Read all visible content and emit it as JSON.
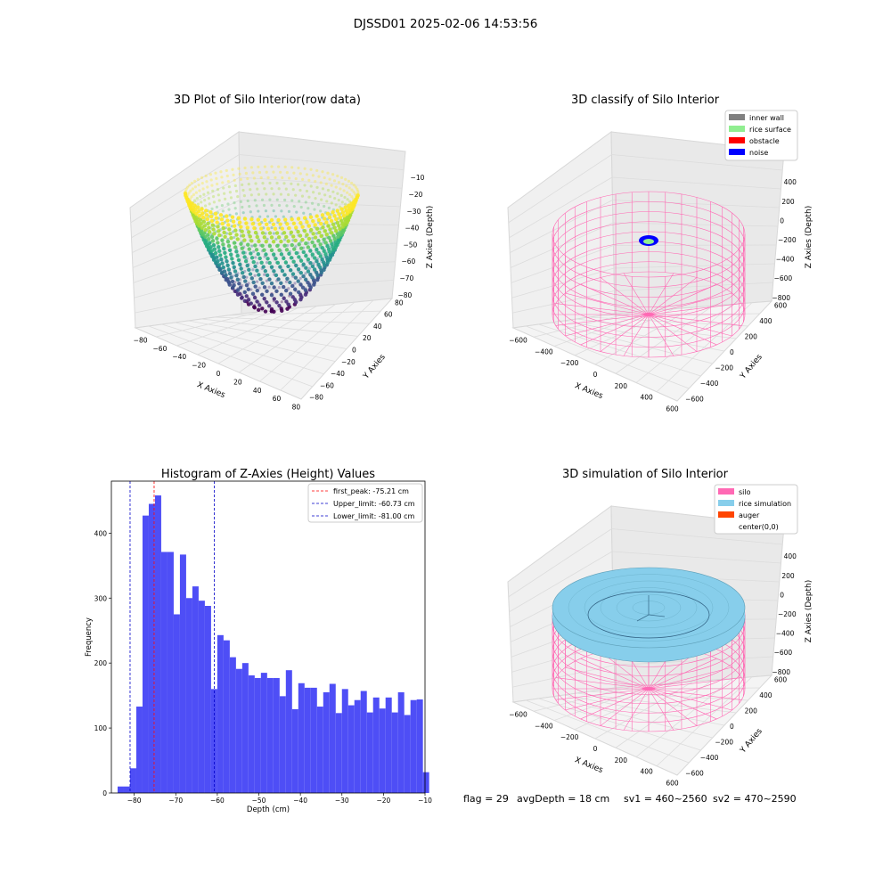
{
  "figure_title": "DJSSD01 2025-02-06 14:53:56",
  "status_line": {
    "flag": "flag = 29",
    "avg_depth": "avgDepth = 18 cm",
    "sv1": "sv1 = 460~2560",
    "sv2": "sv2 = 470~2590"
  },
  "colors": {
    "hist_bar": "#4e4ef6",
    "first_peak": "#ff0000",
    "limit": "#0000c8",
    "inner_wall": "#808080",
    "rice_surface": "#90ee90",
    "obstacle": "#ff0000",
    "noise": "#0000ff",
    "silo": "#ff69b4",
    "rice_simulation": "#87ceeb",
    "auger": "#ff4500"
  },
  "chart_data": [
    {
      "type": "scatter",
      "dimension": "3d",
      "title": "3D Plot of Silo Interior(row data)",
      "xlabel": "X Axies",
      "ylabel": "Y Axies",
      "zlabel": "Z Axies (Depth)",
      "x_ticks": [
        "−80",
        "−60",
        "−40",
        "−20",
        "0",
        "20",
        "40",
        "60",
        "80"
      ],
      "y_ticks": [
        "−80",
        "−60",
        "−40",
        "−20",
        "0",
        "20",
        "40",
        "60",
        "80"
      ],
      "z_ticks": [
        "−10",
        "−20",
        "−30",
        "−40",
        "−50",
        "−60",
        "−70",
        "−80"
      ],
      "xlim": [
        -80,
        80
      ],
      "ylim": [
        -80,
        80
      ],
      "zlim": [
        -85,
        -8
      ],
      "colormap": "viridis"
    },
    {
      "type": "scatter",
      "dimension": "3d",
      "title": "3D classify of Silo Interior",
      "xlabel": "X Axies",
      "ylabel": "Y Axies",
      "zlabel": "Z Axies (Depth)",
      "x_ticks": [
        "−600",
        "−400",
        "−200",
        "0",
        "200",
        "400",
        "600"
      ],
      "y_ticks": [
        "−600",
        "−400",
        "−200",
        "0",
        "200",
        "400",
        "600"
      ],
      "z_ticks": [
        "400",
        "200",
        "0",
        "−200",
        "−400",
        "−600",
        "−800"
      ],
      "legend": [
        "inner wall",
        "rice surface",
        "obstacle",
        "noise"
      ],
      "legend_position": "top-right"
    },
    {
      "type": "bar",
      "title": "Histogram of Z-Axies (Height) Values",
      "xlabel": "Depth (cm)",
      "ylabel": "Frequency",
      "x_range": [
        -85.5,
        -10
      ],
      "ylim": [
        0,
        480
      ],
      "x_ticks": [
        "−80",
        "−70",
        "−60",
        "−50",
        "−40",
        "−30",
        "−20",
        "−10"
      ],
      "y_ticks": [
        "0",
        "100",
        "200",
        "300",
        "400"
      ],
      "bins_start": -84,
      "bin_width": 1.5,
      "values": [
        10,
        10,
        38,
        133,
        427,
        445,
        458,
        371,
        371,
        275,
        367,
        300,
        318,
        296,
        288,
        160,
        243,
        235,
        209,
        191,
        200,
        181,
        177,
        185,
        177,
        177,
        149,
        189,
        129,
        169,
        162,
        162,
        133,
        155,
        168,
        123,
        160,
        135,
        143,
        157,
        124,
        147,
        130,
        147,
        124,
        155,
        120,
        143,
        144,
        32
      ],
      "lines": [
        {
          "label": "first_peak: -75.21 cm",
          "x": -75.21,
          "color": "#ff0000"
        },
        {
          "label": "Upper_limit: -60.73 cm",
          "x": -60.73,
          "color": "#0000c8"
        },
        {
          "label": "Lower_limit: -81.00 cm",
          "x": -81.0,
          "color": "#0000c8"
        }
      ],
      "legend_position": "top-right"
    },
    {
      "type": "scatter",
      "dimension": "3d",
      "title": "3D simulation of Silo Interior",
      "xlabel": "X Axies",
      "ylabel": "Y Axies",
      "zlabel": "Z Axies (Depth)",
      "x_ticks": [
        "−600",
        "−400",
        "−200",
        "0",
        "200",
        "400",
        "600"
      ],
      "y_ticks": [
        "−600",
        "−400",
        "−200",
        "0",
        "200",
        "400",
        "600"
      ],
      "z_ticks": [
        "400",
        "200",
        "0",
        "−200",
        "−400",
        "−600",
        "−800"
      ],
      "legend": [
        "silo",
        "rice simulation",
        "auger",
        "center(0,0)"
      ],
      "legend_position": "top-right"
    }
  ]
}
